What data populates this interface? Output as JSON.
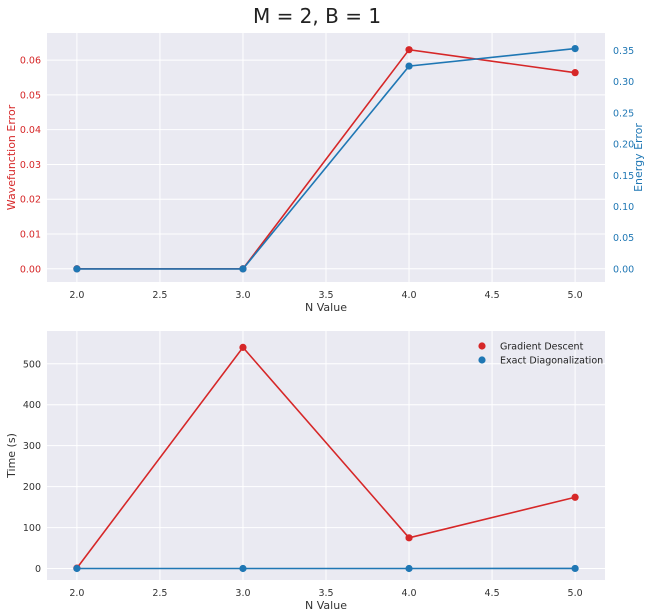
{
  "figure_title": "M = 2, B = 1",
  "colors": {
    "red": "#d62728",
    "blue": "#1f77b4",
    "panel_bg": "#eaeaf2",
    "grid": "#ffffff"
  },
  "chart_data": [
    {
      "type": "line",
      "xlabel": "N Value",
      "ylabel": "Wavefunction Error",
      "ylabel_right": "Energy Error",
      "xlim": [
        1.82,
        5.18
      ],
      "ylim": [
        -0.0038,
        0.0678
      ],
      "ylim_right": [
        -0.021,
        0.378
      ],
      "xticks": [
        "2.0",
        "2.5",
        "3.0",
        "3.5",
        "4.0",
        "4.5",
        "5.0"
      ],
      "yticks": [
        "0.00",
        "0.01",
        "0.02",
        "0.03",
        "0.04",
        "0.05",
        "0.06"
      ],
      "yticks_right": [
        "0.00",
        "0.05",
        "0.10",
        "0.15",
        "0.20",
        "0.25",
        "0.30",
        "0.35"
      ],
      "grid": true,
      "series": [
        {
          "axis": "left",
          "color": "#d62728",
          "x": [
            2,
            3,
            4,
            5
          ],
          "values": [
            0.0,
            0.0,
            0.063,
            0.0564
          ]
        },
        {
          "axis": "right",
          "color": "#1f77b4",
          "x": [
            2,
            3,
            4,
            5
          ],
          "values": [
            0.0,
            0.0,
            0.325,
            0.353
          ]
        }
      ]
    },
    {
      "type": "line",
      "xlabel": "N Value",
      "ylabel": "Time (s)",
      "xlim": [
        1.82,
        5.18
      ],
      "ylim": [
        -28,
        580
      ],
      "xticks": [
        "2.0",
        "2.5",
        "3.0",
        "3.5",
        "4.0",
        "4.5",
        "5.0"
      ],
      "yticks": [
        "0",
        "100",
        "200",
        "300",
        "400",
        "500"
      ],
      "grid": true,
      "legend_position": "top-right",
      "series": [
        {
          "name": "Gradient Descent",
          "color": "#d62728",
          "x": [
            2,
            3,
            4,
            5
          ],
          "values": [
            1,
            540,
            75,
            174
          ]
        },
        {
          "name": "Exact Diagonalization",
          "color": "#1f77b4",
          "x": [
            2,
            3,
            4,
            5
          ],
          "values": [
            0.05,
            0.05,
            0.1,
            0.2
          ]
        }
      ]
    }
  ]
}
